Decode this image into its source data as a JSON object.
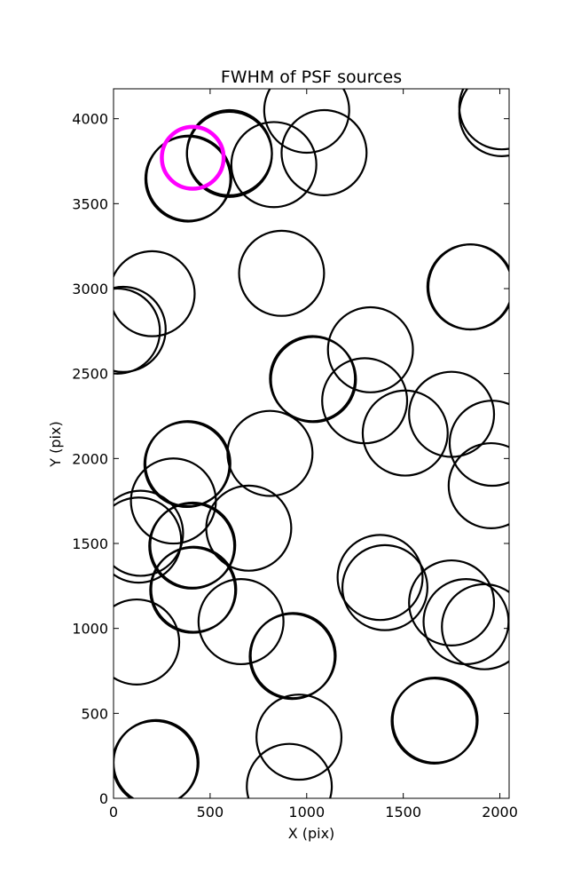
{
  "chart_data": {
    "type": "scatter",
    "title": "FWHM of PSF sources",
    "xlabel": "X (pix)",
    "ylabel": "Y (pix)",
    "xlim": [
      0,
      2048
    ],
    "ylim": [
      0,
      4176
    ],
    "xticks": [
      0,
      500,
      1000,
      1500,
      2000
    ],
    "yticks": [
      0,
      500,
      1000,
      1500,
      2000,
      2500,
      3000,
      3500,
      4000
    ],
    "grid": false,
    "colors": {
      "sources": "#000000",
      "highlight": "#ff00ff"
    },
    "circle_radius_pix": 220,
    "sources": [
      {
        "x": 2010,
        "y": 4070
      },
      {
        "x": 2010,
        "y": 4030
      },
      {
        "x": 1000,
        "y": 4050
      },
      {
        "x": 600,
        "y": 3800
      },
      {
        "x": 600,
        "y": 3790
      },
      {
        "x": 830,
        "y": 3730
      },
      {
        "x": 1090,
        "y": 3800
      },
      {
        "x": 390,
        "y": 3650
      },
      {
        "x": 385,
        "y": 3645
      },
      {
        "x": 870,
        "y": 3090
      },
      {
        "x": 200,
        "y": 2970
      },
      {
        "x": 50,
        "y": 2760
      },
      {
        "x": 20,
        "y": 2750
      },
      {
        "x": 1850,
        "y": 3010
      },
      {
        "x": 1845,
        "y": 3010
      },
      {
        "x": 1330,
        "y": 2640
      },
      {
        "x": 1030,
        "y": 2470
      },
      {
        "x": 1035,
        "y": 2465
      },
      {
        "x": 1300,
        "y": 2340
      },
      {
        "x": 1750,
        "y": 2260
      },
      {
        "x": 1960,
        "y": 2090
      },
      {
        "x": 1510,
        "y": 2150
      },
      {
        "x": 1955,
        "y": 1840
      },
      {
        "x": 810,
        "y": 2030
      },
      {
        "x": 385,
        "y": 1970
      },
      {
        "x": 380,
        "y": 1965
      },
      {
        "x": 310,
        "y": 1750
      },
      {
        "x": 140,
        "y": 1560
      },
      {
        "x": 130,
        "y": 1520
      },
      {
        "x": 700,
        "y": 1590
      },
      {
        "x": 410,
        "y": 1490
      },
      {
        "x": 405,
        "y": 1485
      },
      {
        "x": 415,
        "y": 1230
      },
      {
        "x": 410,
        "y": 1225
      },
      {
        "x": 1380,
        "y": 1300
      },
      {
        "x": 1405,
        "y": 1240
      },
      {
        "x": 1750,
        "y": 1150
      },
      {
        "x": 1825,
        "y": 1040
      },
      {
        "x": 1920,
        "y": 1010
      },
      {
        "x": 120,
        "y": 920
      },
      {
        "x": 660,
        "y": 1040
      },
      {
        "x": 930,
        "y": 840
      },
      {
        "x": 925,
        "y": 835
      },
      {
        "x": 1665,
        "y": 460
      },
      {
        "x": 1660,
        "y": 455
      },
      {
        "x": 960,
        "y": 360
      },
      {
        "x": 220,
        "y": 210
      },
      {
        "x": 215,
        "y": 205
      },
      {
        "x": 910,
        "y": 70
      }
    ],
    "highlight": {
      "x": 410,
      "y": 3770,
      "r": 160
    }
  }
}
